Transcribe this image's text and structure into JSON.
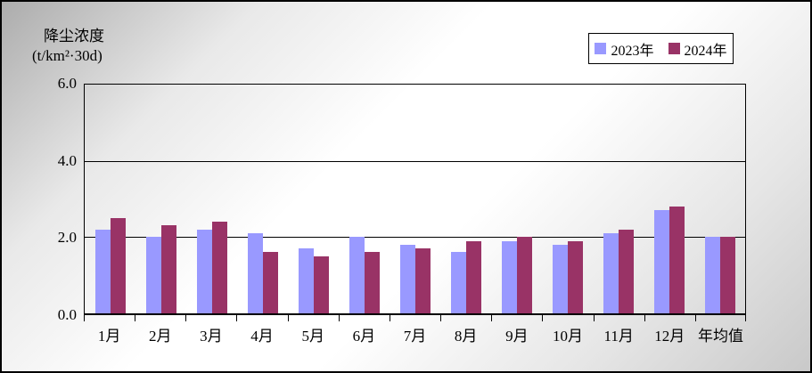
{
  "chart_data": {
    "type": "bar",
    "y_axis_label_line1": "降尘浓度",
    "y_axis_label_line2": "(t/km²·30d)",
    "categories": [
      "1月",
      "2月",
      "3月",
      "4月",
      "5月",
      "6月",
      "7月",
      "8月",
      "9月",
      "10月",
      "11月",
      "12月",
      "年均值"
    ],
    "series": [
      {
        "name": "2023年",
        "color": "#9999FF",
        "values": [
          2.2,
          2.0,
          2.2,
          2.1,
          1.7,
          2.0,
          1.8,
          1.6,
          1.9,
          1.8,
          2.1,
          2.7,
          2.0
        ]
      },
      {
        "name": "2024年",
        "color": "#993366",
        "values": [
          2.5,
          2.3,
          2.4,
          1.6,
          1.5,
          1.6,
          1.7,
          1.9,
          2.0,
          1.9,
          2.2,
          2.8,
          2.0
        ]
      }
    ],
    "ylim": [
      0,
      6
    ],
    "yticks": [
      0,
      2,
      4,
      6
    ],
    "ytick_labels": [
      "0.0",
      "2.0",
      "4.0",
      "6.0"
    ],
    "grid": true,
    "legend_position": "top-right",
    "frame_color": "#000000",
    "plot_border_color": "#000000"
  }
}
